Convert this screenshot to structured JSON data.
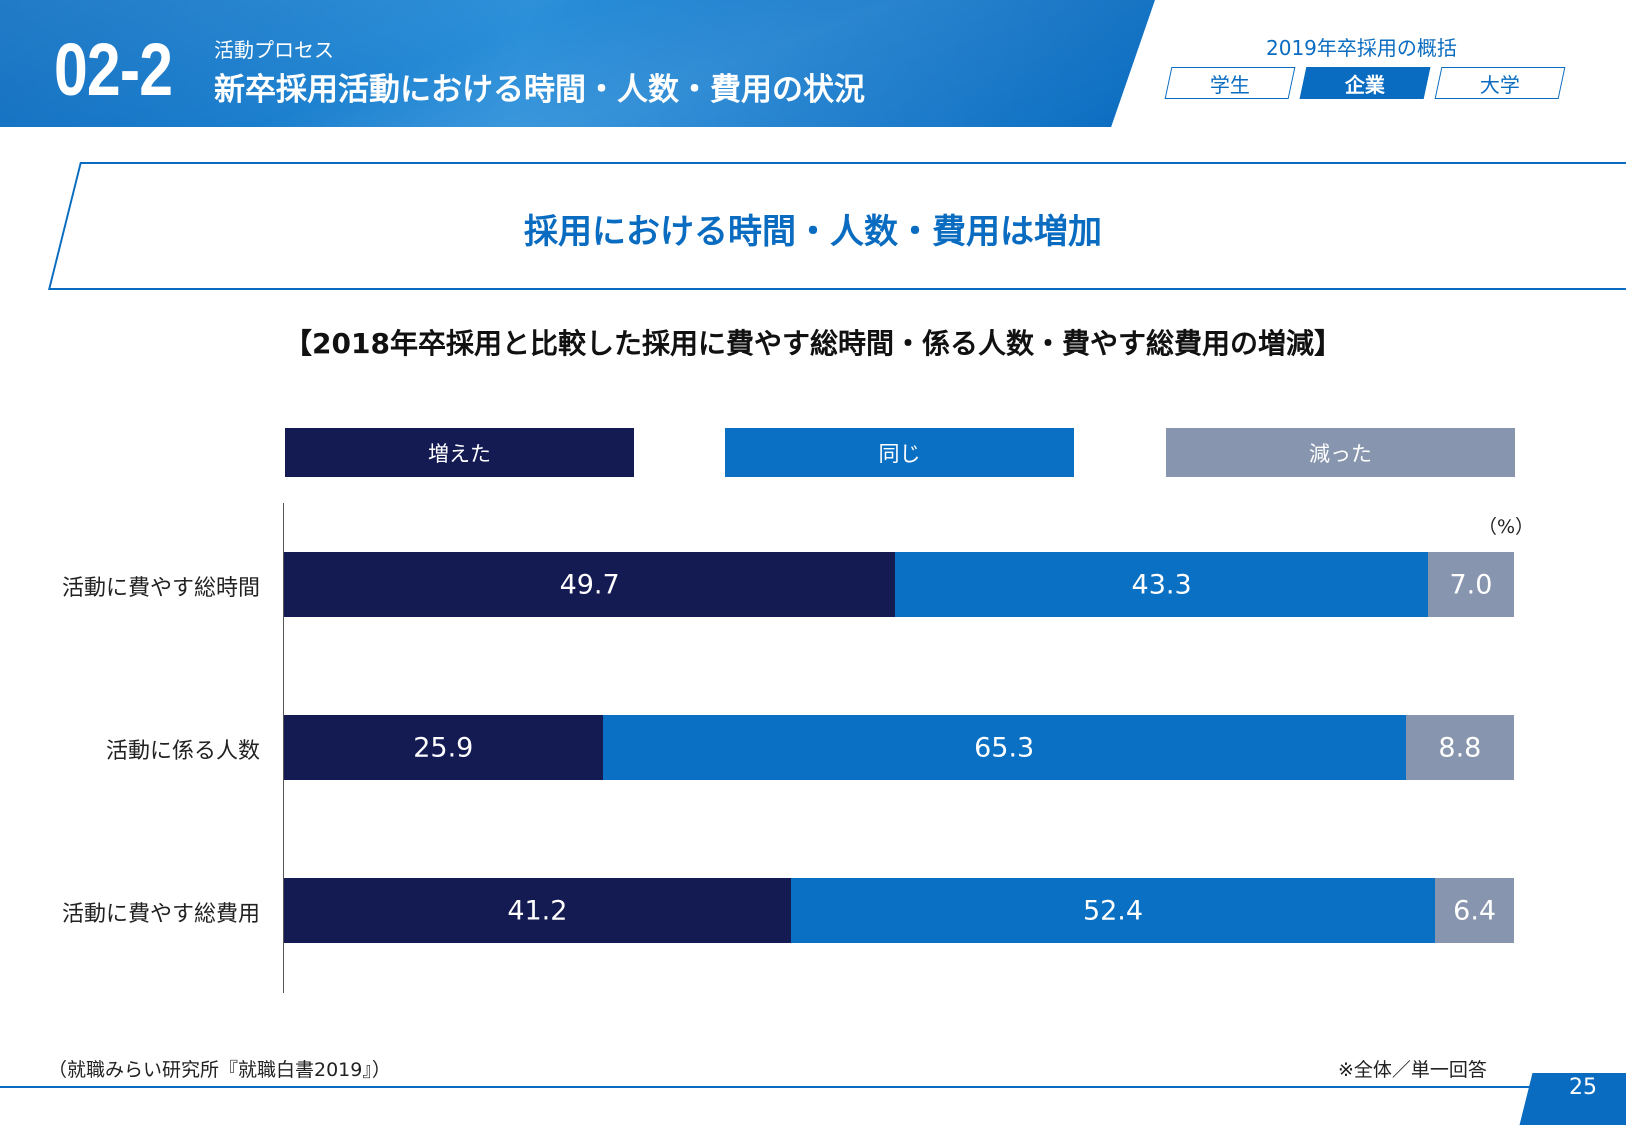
{
  "header": {
    "section_number": "02-2",
    "section_sub": "活動プロセス",
    "section_title": "新卒採用活動における時間・人数・費用の状況",
    "overview_label": "2019年卒採用の概括",
    "tabs": [
      {
        "label": "学生",
        "active": false
      },
      {
        "label": "企業",
        "active": true
      },
      {
        "label": "大学",
        "active": false
      }
    ]
  },
  "headline": "採用における時間・人数・費用は増加",
  "chart_data": {
    "type": "bar",
    "orientation": "horizontal",
    "stacked": true,
    "title": "【2018年卒採用と比較した採用に費やす総時間・係る人数・費やす総費用の増減】",
    "unit": "（%）",
    "categories": [
      "活動に費やす総時間",
      "活動に係る人数",
      "活動に費やす総費用"
    ],
    "series": [
      {
        "name": "増えた",
        "color": "#141a52",
        "values": [
          49.7,
          25.9,
          41.2
        ]
      },
      {
        "name": "同じ",
        "color": "#0a70c4",
        "values": [
          43.3,
          65.3,
          52.4
        ]
      },
      {
        "name": "減った",
        "color": "#8796ae",
        "values": [
          7.0,
          8.8,
          6.4
        ]
      }
    ],
    "value_labels": [
      [
        "49.7",
        "43.3",
        "7.0"
      ],
      [
        "25.9",
        "65.3",
        "8.8"
      ],
      [
        "41.2",
        "52.4",
        "6.4"
      ]
    ],
    "xlim": [
      0,
      100
    ],
    "legend_position": "top"
  },
  "footer": {
    "source": "（就職みらい研究所『就職白書2019』）",
    "note": "※全体／単一回答",
    "page_number": "25"
  }
}
